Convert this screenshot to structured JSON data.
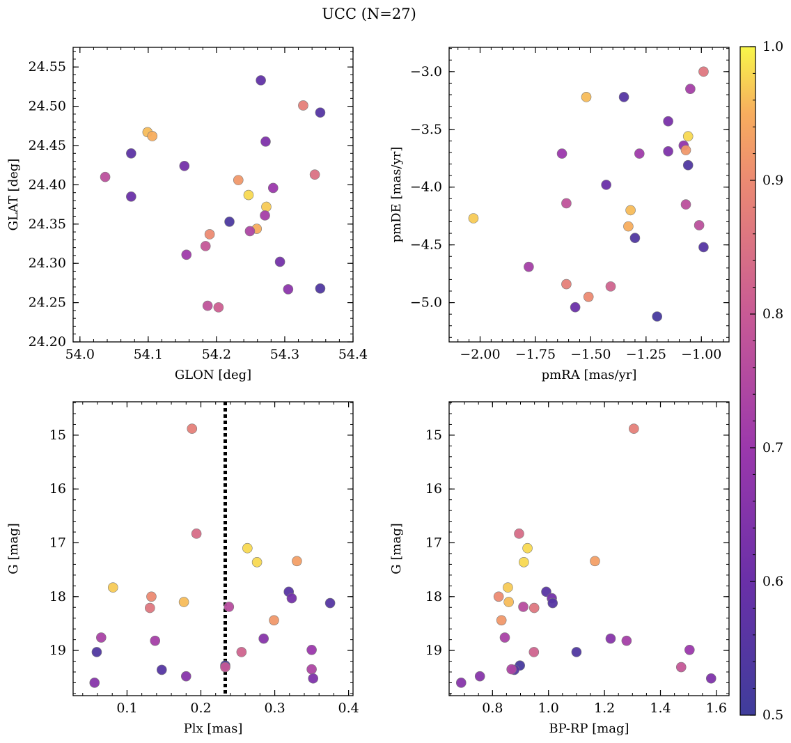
{
  "figure": {
    "title": "UCC (N=27)"
  },
  "colorbar": {
    "min": 0.5,
    "max": 1.0,
    "ticks": [
      0.5,
      0.6,
      0.7,
      0.8,
      0.9,
      1.0
    ],
    "tick_labels": [
      "0.5",
      "0.6",
      "0.7",
      "0.8",
      "0.9",
      "1.0"
    ],
    "colormap": "plasma"
  },
  "chart_data": [
    {
      "type": "scatter",
      "xlabel": "GLON [deg]",
      "ylabel": "GLAT [deg]",
      "xlim": [
        53.99,
        54.4
      ],
      "ylim": [
        24.2,
        24.575
      ],
      "xticks": [
        54.0,
        54.1,
        54.2,
        54.3,
        54.4
      ],
      "xtick_labels": [
        "54.0",
        "54.1",
        "54.2",
        "54.3",
        "54.4"
      ],
      "yticks": [
        24.2,
        24.25,
        24.3,
        24.35,
        24.4,
        24.45,
        24.5,
        24.55
      ],
      "ytick_labels": [
        "24.20",
        "24.25",
        "24.30",
        "24.35",
        "24.40",
        "24.45",
        "24.50",
        "24.55"
      ],
      "points": [
        {
          "x": 54.265,
          "y": 24.533,
          "c": 0.58
        },
        {
          "x": 54.327,
          "y": 24.501,
          "c": 0.88
        },
        {
          "x": 54.352,
          "y": 24.492,
          "c": 0.55
        },
        {
          "x": 54.099,
          "y": 24.467,
          "c": 0.96
        },
        {
          "x": 54.106,
          "y": 24.462,
          "c": 0.95
        },
        {
          "x": 54.272,
          "y": 24.455,
          "c": 0.64
        },
        {
          "x": 54.075,
          "y": 24.44,
          "c": 0.57
        },
        {
          "x": 54.153,
          "y": 24.424,
          "c": 0.62
        },
        {
          "x": 54.344,
          "y": 24.413,
          "c": 0.85
        },
        {
          "x": 54.037,
          "y": 24.41,
          "c": 0.77
        },
        {
          "x": 54.232,
          "y": 24.406,
          "c": 0.92
        },
        {
          "x": 54.283,
          "y": 24.396,
          "c": 0.7
        },
        {
          "x": 54.247,
          "y": 24.387,
          "c": 0.98
        },
        {
          "x": 54.075,
          "y": 24.385,
          "c": 0.6
        },
        {
          "x": 54.273,
          "y": 24.372,
          "c": 0.97
        },
        {
          "x": 54.271,
          "y": 24.361,
          "c": 0.72
        },
        {
          "x": 54.219,
          "y": 24.353,
          "c": 0.53
        },
        {
          "x": 54.259,
          "y": 24.344,
          "c": 0.95
        },
        {
          "x": 54.249,
          "y": 24.341,
          "c": 0.74
        },
        {
          "x": 54.19,
          "y": 24.337,
          "c": 0.9
        },
        {
          "x": 54.184,
          "y": 24.322,
          "c": 0.79
        },
        {
          "x": 54.156,
          "y": 24.311,
          "c": 0.71
        },
        {
          "x": 54.293,
          "y": 24.302,
          "c": 0.62
        },
        {
          "x": 54.305,
          "y": 24.267,
          "c": 0.67
        },
        {
          "x": 54.352,
          "y": 24.268,
          "c": 0.54
        },
        {
          "x": 54.187,
          "y": 24.246,
          "c": 0.78
        },
        {
          "x": 54.203,
          "y": 24.244,
          "c": 0.81
        }
      ]
    },
    {
      "type": "scatter",
      "xlabel": "pmRA [mas/yr]",
      "ylabel": "pmDE [mas/yr]",
      "xlim": [
        -2.14,
        -0.875
      ],
      "ylim": [
        -5.34,
        -2.79
      ],
      "xticks": [
        -2.0,
        -1.75,
        -1.5,
        -1.25,
        -1.0
      ],
      "xtick_labels": [
        "−2.00",
        "−1.75",
        "−1.50",
        "−1.25",
        "−1.00"
      ],
      "yticks": [
        -5.0,
        -4.5,
        -4.0,
        -3.5,
        -3.0
      ],
      "ytick_labels": [
        "−5.0",
        "−4.5",
        "−4.0",
        "−3.5",
        "−3.0"
      ],
      "points": [
        {
          "x": -0.99,
          "y": -3.0,
          "c": 0.86
        },
        {
          "x": -1.52,
          "y": -3.22,
          "c": 0.96
        },
        {
          "x": -1.35,
          "y": -3.22,
          "c": 0.55
        },
        {
          "x": -1.05,
          "y": -3.15,
          "c": 0.72
        },
        {
          "x": -1.15,
          "y": -3.43,
          "c": 0.63
        },
        {
          "x": -1.06,
          "y": -3.56,
          "c": 0.98
        },
        {
          "x": -1.08,
          "y": -3.64,
          "c": 0.68
        },
        {
          "x": -1.07,
          "y": -3.68,
          "c": 0.92
        },
        {
          "x": -1.63,
          "y": -3.71,
          "c": 0.7
        },
        {
          "x": -1.28,
          "y": -3.71,
          "c": 0.71
        },
        {
          "x": -1.15,
          "y": -3.69,
          "c": 0.64
        },
        {
          "x": -1.06,
          "y": -3.81,
          "c": 0.54
        },
        {
          "x": -1.43,
          "y": -3.98,
          "c": 0.6
        },
        {
          "x": -1.61,
          "y": -4.14,
          "c": 0.78
        },
        {
          "x": -1.07,
          "y": -4.15,
          "c": 0.77
        },
        {
          "x": -1.32,
          "y": -4.2,
          "c": 0.96
        },
        {
          "x": -2.03,
          "y": -4.27,
          "c": 0.97
        },
        {
          "x": -1.01,
          "y": -4.33,
          "c": 0.77
        },
        {
          "x": -1.33,
          "y": -4.34,
          "c": 0.95
        },
        {
          "x": -1.3,
          "y": -4.44,
          "c": 0.54
        },
        {
          "x": -0.99,
          "y": -4.52,
          "c": 0.55
        },
        {
          "x": -1.78,
          "y": -4.69,
          "c": 0.72
        },
        {
          "x": -1.61,
          "y": -4.84,
          "c": 0.88
        },
        {
          "x": -1.41,
          "y": -4.86,
          "c": 0.82
        },
        {
          "x": -1.51,
          "y": -4.95,
          "c": 0.9
        },
        {
          "x": -1.57,
          "y": -5.04,
          "c": 0.6
        },
        {
          "x": -1.2,
          "y": -5.12,
          "c": 0.52
        }
      ]
    },
    {
      "type": "scatter",
      "xlabel": "Plx [mas]",
      "ylabel": "G [mag]",
      "xlim": [
        0.027,
        0.406
      ],
      "ylim": [
        19.84,
        14.38
      ],
      "y_inverted": true,
      "xticks": [
        0.1,
        0.2,
        0.3,
        0.4
      ],
      "xtick_labels": [
        "0.1",
        "0.2",
        "0.3",
        "0.4"
      ],
      "yticks": [
        15,
        16,
        17,
        18,
        19
      ],
      "ytick_labels": [
        "15",
        "16",
        "17",
        "18",
        "19"
      ],
      "reference_line": {
        "x": 0.233,
        "style": "dotted"
      },
      "points": [
        {
          "x": 0.188,
          "y": 14.88,
          "c": 0.88
        },
        {
          "x": 0.194,
          "y": 16.83,
          "c": 0.84
        },
        {
          "x": 0.263,
          "y": 17.1,
          "c": 0.98
        },
        {
          "x": 0.276,
          "y": 17.36,
          "c": 0.98
        },
        {
          "x": 0.33,
          "y": 17.34,
          "c": 0.93
        },
        {
          "x": 0.081,
          "y": 17.83,
          "c": 0.97
        },
        {
          "x": 0.319,
          "y": 17.91,
          "c": 0.56
        },
        {
          "x": 0.323,
          "y": 18.03,
          "c": 0.62
        },
        {
          "x": 0.133,
          "y": 18.0,
          "c": 0.9
        },
        {
          "x": 0.177,
          "y": 18.1,
          "c": 0.96
        },
        {
          "x": 0.375,
          "y": 18.12,
          "c": 0.55
        },
        {
          "x": 0.131,
          "y": 18.21,
          "c": 0.86
        },
        {
          "x": 0.238,
          "y": 18.19,
          "c": 0.76
        },
        {
          "x": 0.299,
          "y": 18.44,
          "c": 0.92
        },
        {
          "x": 0.065,
          "y": 18.76,
          "c": 0.73
        },
        {
          "x": 0.138,
          "y": 18.82,
          "c": 0.72
        },
        {
          "x": 0.285,
          "y": 18.78,
          "c": 0.66
        },
        {
          "x": 0.35,
          "y": 18.99,
          "c": 0.7
        },
        {
          "x": 0.059,
          "y": 19.03,
          "c": 0.54
        },
        {
          "x": 0.255,
          "y": 19.03,
          "c": 0.82
        },
        {
          "x": 0.233,
          "y": 19.28,
          "c": 0.52
        },
        {
          "x": 0.233,
          "y": 19.31,
          "c": 0.79
        },
        {
          "x": 0.147,
          "y": 19.36,
          "c": 0.55
        },
        {
          "x": 0.35,
          "y": 19.35,
          "c": 0.74
        },
        {
          "x": 0.18,
          "y": 19.48,
          "c": 0.66
        },
        {
          "x": 0.352,
          "y": 19.52,
          "c": 0.64
        },
        {
          "x": 0.056,
          "y": 19.6,
          "c": 0.66
        }
      ]
    },
    {
      "type": "scatter",
      "xlabel": "BP-RP [mag]",
      "ylabel": "G [mag]",
      "xlim": [
        0.645,
        1.645
      ],
      "ylim": [
        19.84,
        14.38
      ],
      "y_inverted": true,
      "xticks": [
        0.8,
        1.0,
        1.2,
        1.4,
        1.6
      ],
      "xtick_labels": [
        "0.8",
        "1.0",
        "1.2",
        "1.4",
        "1.6"
      ],
      "yticks": [
        15,
        16,
        17,
        18,
        19
      ],
      "ytick_labels": [
        "15",
        "16",
        "17",
        "18",
        "19"
      ],
      "points": [
        {
          "x": 1.305,
          "y": 14.88,
          "c": 0.88
        },
        {
          "x": 0.895,
          "y": 16.83,
          "c": 0.84
        },
        {
          "x": 0.925,
          "y": 17.1,
          "c": 0.98
        },
        {
          "x": 0.912,
          "y": 17.36,
          "c": 0.98
        },
        {
          "x": 1.166,
          "y": 17.34,
          "c": 0.93
        },
        {
          "x": 0.855,
          "y": 17.83,
          "c": 0.97
        },
        {
          "x": 0.992,
          "y": 17.91,
          "c": 0.56
        },
        {
          "x": 1.012,
          "y": 18.03,
          "c": 0.62
        },
        {
          "x": 0.822,
          "y": 18.0,
          "c": 0.9
        },
        {
          "x": 0.858,
          "y": 18.1,
          "c": 0.96
        },
        {
          "x": 1.015,
          "y": 18.12,
          "c": 0.55
        },
        {
          "x": 0.949,
          "y": 18.21,
          "c": 0.86
        },
        {
          "x": 0.91,
          "y": 18.19,
          "c": 0.76
        },
        {
          "x": 0.832,
          "y": 18.44,
          "c": 0.92
        },
        {
          "x": 0.844,
          "y": 18.76,
          "c": 0.73
        },
        {
          "x": 1.279,
          "y": 18.82,
          "c": 0.72
        },
        {
          "x": 1.222,
          "y": 18.78,
          "c": 0.66
        },
        {
          "x": 1.504,
          "y": 18.99,
          "c": 0.7
        },
        {
          "x": 1.1,
          "y": 19.03,
          "c": 0.54
        },
        {
          "x": 0.948,
          "y": 19.03,
          "c": 0.82
        },
        {
          "x": 0.898,
          "y": 19.28,
          "c": 0.52
        },
        {
          "x": 1.474,
          "y": 19.31,
          "c": 0.79
        },
        {
          "x": 0.878,
          "y": 19.36,
          "c": 0.55
        },
        {
          "x": 0.868,
          "y": 19.35,
          "c": 0.74
        },
        {
          "x": 0.755,
          "y": 19.48,
          "c": 0.66
        },
        {
          "x": 1.581,
          "y": 19.52,
          "c": 0.64
        },
        {
          "x": 0.688,
          "y": 19.6,
          "c": 0.66
        }
      ]
    }
  ]
}
